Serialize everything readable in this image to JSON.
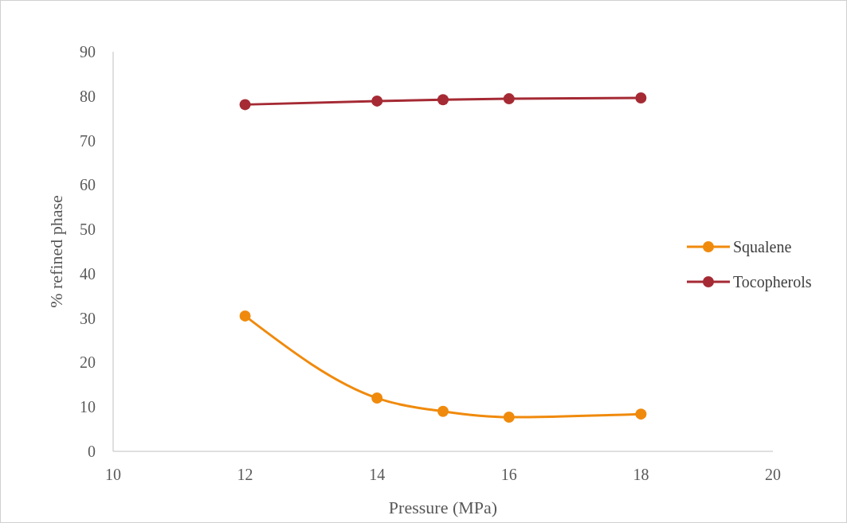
{
  "chart_data": {
    "type": "line",
    "xlabel": "Pressure (MPa)",
    "ylabel": "% refined phase",
    "x": [
      12,
      14,
      15,
      16,
      18
    ],
    "series": [
      {
        "name": "Squalene",
        "color": "#f08a0c",
        "values": [
          30.5,
          12.0,
          9.0,
          7.7,
          8.4
        ]
      },
      {
        "name": "Tocopherols",
        "color": "#a52a34",
        "values": [
          78.1,
          78.9,
          79.2,
          79.4,
          79.6
        ]
      }
    ],
    "xlim": [
      10,
      20
    ],
    "xticks": [
      10,
      12,
      14,
      16,
      18,
      20
    ],
    "ylim": [
      0,
      90
    ],
    "yticks": [
      0,
      10,
      20,
      30,
      40,
      50,
      60,
      70,
      80,
      90
    ],
    "grid": false,
    "legend": "right",
    "marker": "circle",
    "line_style": "solid"
  }
}
